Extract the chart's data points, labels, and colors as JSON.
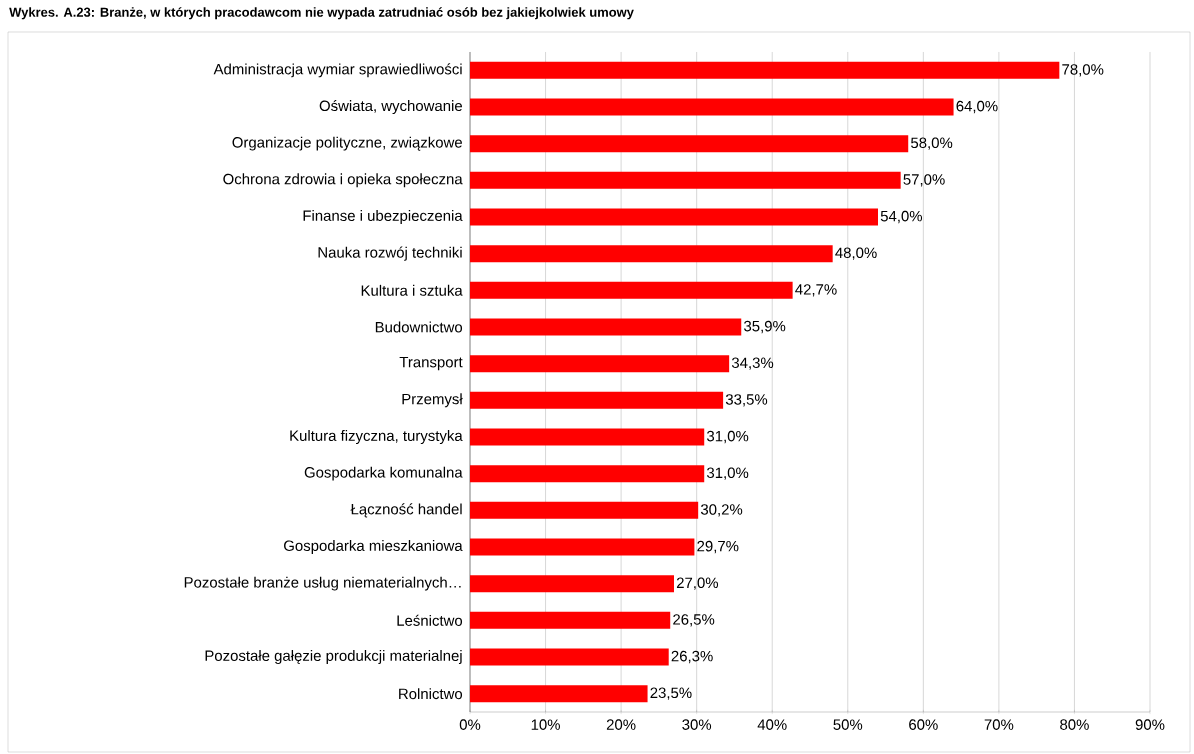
{
  "chart_data": {
    "type": "bar",
    "orientation": "horizontal",
    "title": "Wykres. A.23: Branże, w których pracodawcom nie wypada zatrudniać osób bez jakiejkolwiek umowy",
    "categories": [
      "Administracja wymiar sprawiedliwości",
      "Oświata, wychowanie",
      "Organizacje polityczne, związkowe",
      "Ochrona zdrowia i opieka społeczna",
      "Finanse i ubezpieczenia",
      "Nauka rozwój techniki",
      "Kultura i sztuka",
      "Budownictwo",
      "Transport",
      "Przemysł",
      "Kultura fizyczna, turystyka",
      "Gospodarka komunalna",
      "Łączność handel",
      "Gospodarka mieszkaniowa",
      "Pozostałe branże usług niematerialnych…",
      "Leśnictwo",
      "Pozostałe gałęzie produkcji materialnej",
      "Rolnictwo"
    ],
    "values": [
      78.0,
      64.0,
      58.0,
      57.0,
      54.0,
      48.0,
      42.7,
      35.9,
      34.3,
      33.5,
      31.0,
      31.0,
      30.2,
      29.7,
      27.0,
      26.5,
      26.3,
      23.5
    ],
    "value_labels": [
      "78,0%",
      "64,0%",
      "58,0%",
      "57,0%",
      "54,0%",
      "48,0%",
      "42,7%",
      "35,9%",
      "34,3%",
      "33,5%",
      "31,0%",
      "31,0%",
      "30,2%",
      "29,7%",
      "27,0%",
      "26,5%",
      "26,3%",
      "23,5%"
    ],
    "color": "#ff0000",
    "xlim": [
      0,
      90
    ],
    "xticks": [
      {
        "value": 0,
        "label": "0%"
      },
      {
        "value": 10,
        "label": "10%"
      },
      {
        "value": 20,
        "label": "20%"
      },
      {
        "value": 30,
        "label": "30%"
      },
      {
        "value": 40,
        "label": "40%"
      },
      {
        "value": 50,
        "label": "50%"
      },
      {
        "value": 60,
        "label": "60%"
      },
      {
        "value": 70,
        "label": "70%"
      },
      {
        "value": 80,
        "label": "80%"
      },
      {
        "value": 90,
        "label": "90%"
      }
    ],
    "grid": "x"
  }
}
